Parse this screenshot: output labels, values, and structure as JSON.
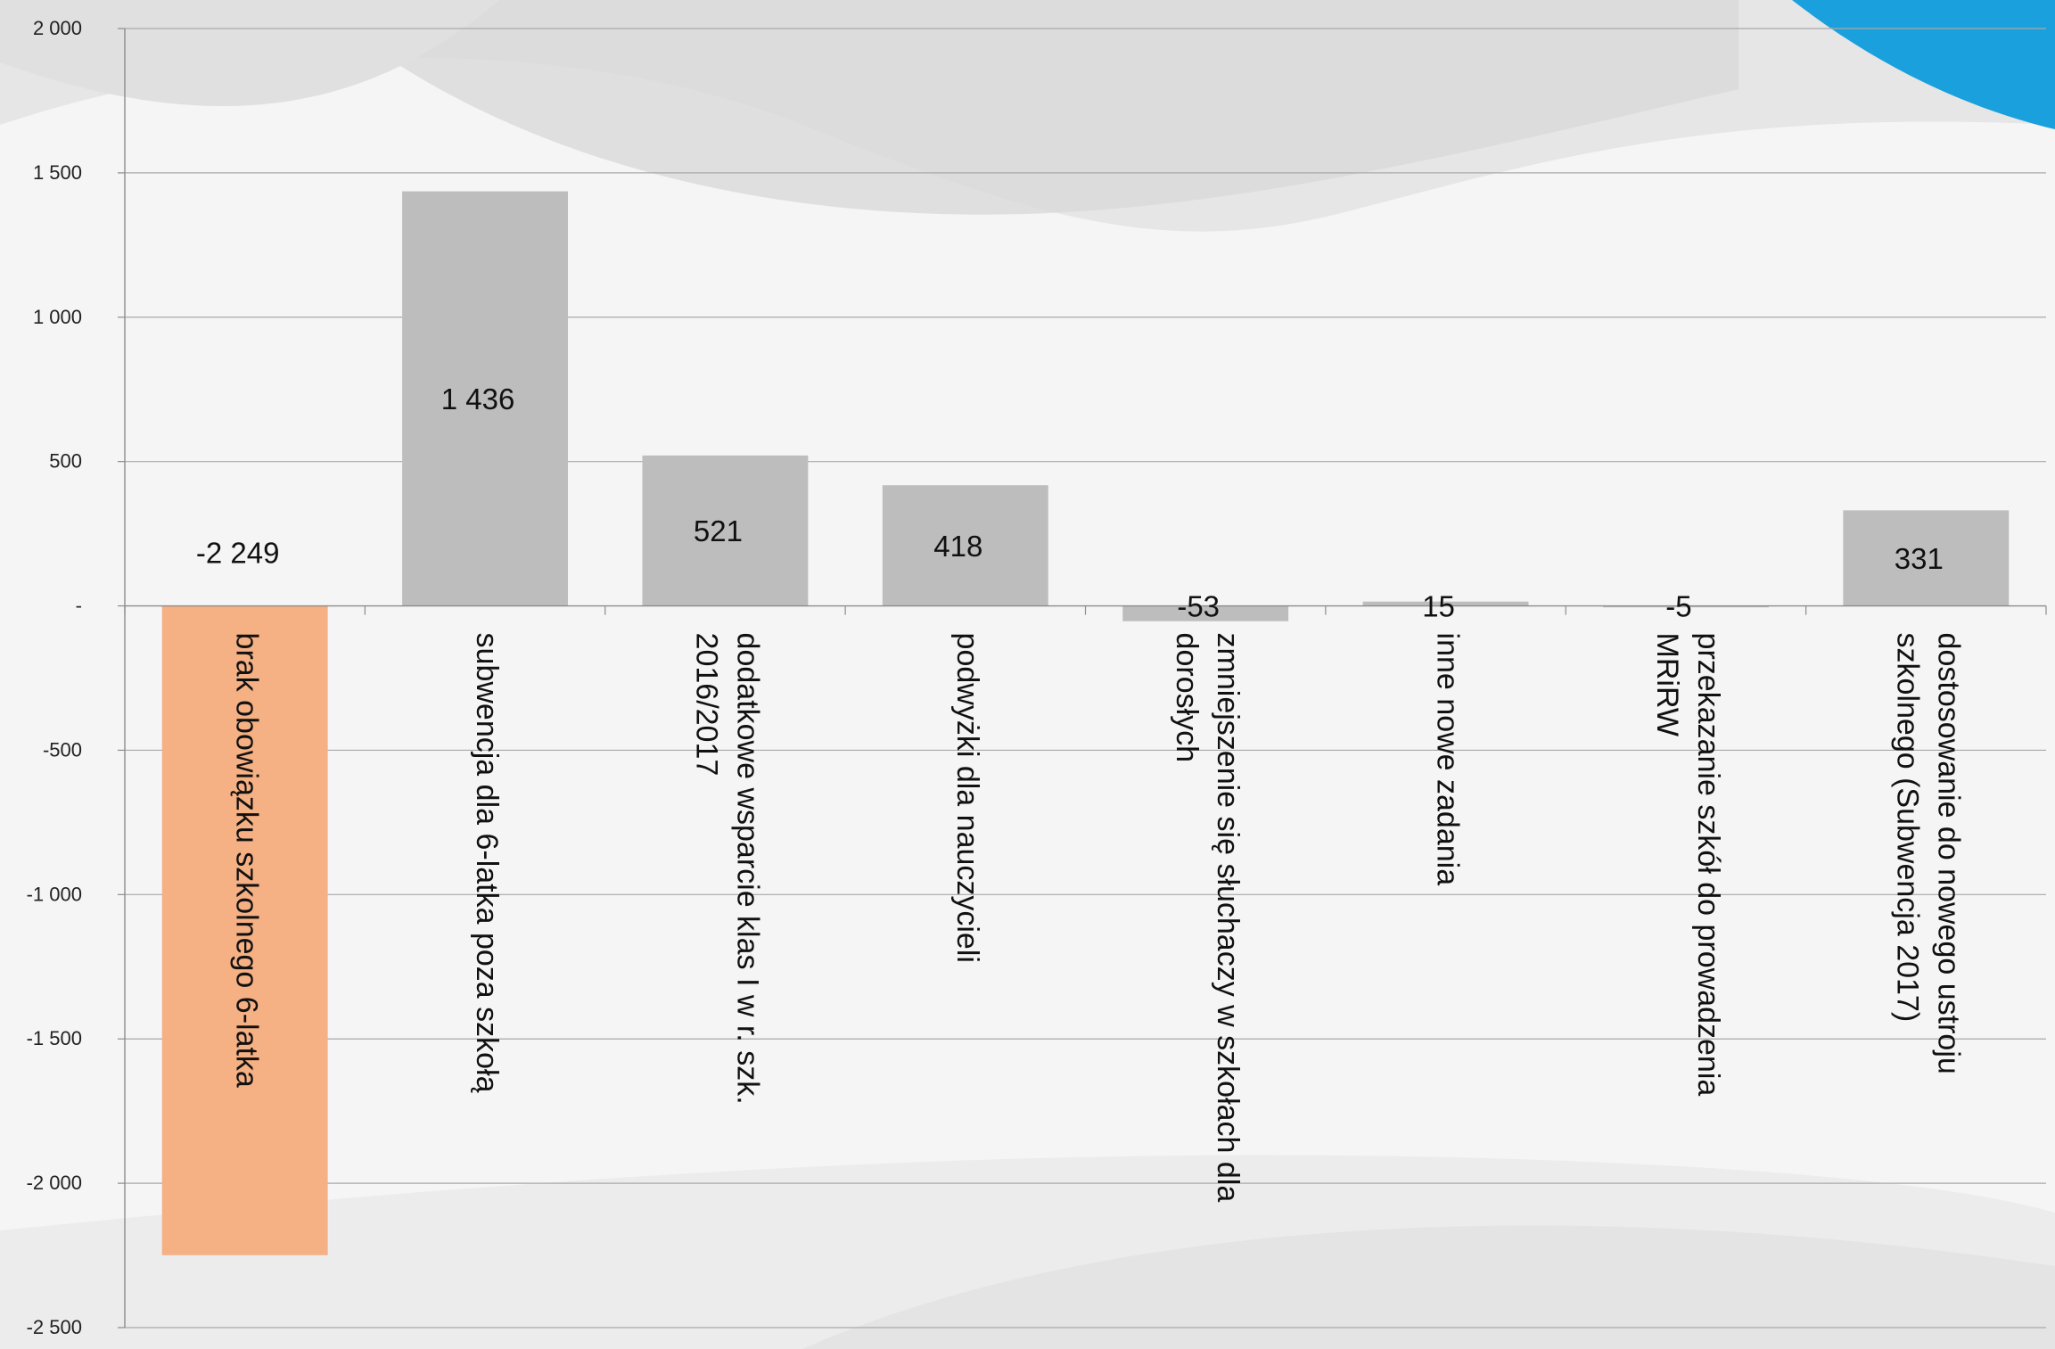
{
  "chart_data": {
    "type": "bar",
    "title": "",
    "xlabel": "",
    "ylabel": "",
    "ylim": [
      -2500,
      2000
    ],
    "yticks": [
      2000,
      1500,
      1000,
      500,
      0,
      -500,
      -1000,
      -1500,
      -2000,
      -2500
    ],
    "ytick_labels": [
      "2 000",
      "1 500",
      "1 000",
      "500",
      "-",
      "-500",
      "-1 000",
      "-1 500",
      "-2 000",
      "-2 500"
    ],
    "grid": true,
    "legend": "none",
    "categories": [
      [
        "brak obowiązku szkolnego 6-latka"
      ],
      [
        "subwencja dla 6-latka poza szkołą"
      ],
      [
        "dodatkowe wsparcie  klas I w r. szk.",
        "2016/2017"
      ],
      [
        "podwyżki dla nauczycieli"
      ],
      [
        "zmniejszenie się słuchaczy w szkołach dla",
        "dorosłych"
      ],
      [
        "inne nowe zadania"
      ],
      [
        "przekazanie szkół do prowadzenia",
        "MRiRW"
      ],
      [
        "dostosowanie do nowego ustroju",
        "szkolnego (Subwencja 2017)"
      ]
    ],
    "values": [
      -2249,
      1436,
      521,
      418,
      -53,
      15,
      -5,
      331
    ],
    "value_labels": [
      "-2 249",
      "1 436",
      "521",
      "418",
      "-53",
      "15",
      "-5",
      "331"
    ],
    "colors": {
      "highlight": "#f5b083",
      "bar": "#bdbdbd",
      "grid": "#a9a9a9",
      "axis": "#8c8c8c",
      "accent": "#1aa0dc"
    }
  }
}
